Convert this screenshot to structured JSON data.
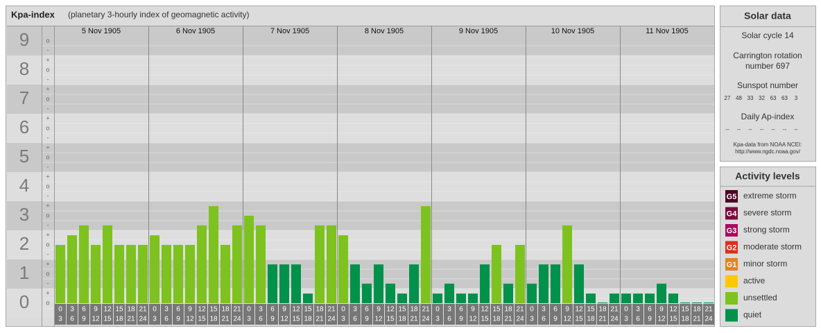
{
  "header": {
    "title": "Kpa-index",
    "subtitle": "(planetary 3-hourly index of geomagnetic activity)"
  },
  "chart_data": {
    "type": "bar",
    "days": [
      {
        "date": "5 Nov 1905",
        "values": [
          2,
          2.33,
          2.67,
          2,
          2.67,
          2,
          2,
          2
        ],
        "colors": [
          "#7dc21e",
          "#7dc21e",
          "#7dc21e",
          "#7dc21e",
          "#7dc21e",
          "#7dc21e",
          "#7dc21e",
          "#7dc21e"
        ]
      },
      {
        "date": "6 Nov 1905",
        "values": [
          2.33,
          2,
          2,
          2,
          2.67,
          3.33,
          2,
          2.67
        ],
        "colors": [
          "#7dc21e",
          "#7dc21e",
          "#7dc21e",
          "#7dc21e",
          "#7dc21e",
          "#7dc21e",
          "#7dc21e",
          "#7dc21e"
        ]
      },
      {
        "date": "7 Nov 1905",
        "values": [
          3,
          2.67,
          1.33,
          1.33,
          1.33,
          0.33,
          2.67,
          2.67
        ],
        "colors": [
          "#7dc21e",
          "#7dc21e",
          "#00914a",
          "#00914a",
          "#00914a",
          "#00914a",
          "#7dc21e",
          "#7dc21e"
        ]
      },
      {
        "date": "8 Nov 1905",
        "values": [
          2.33,
          1.33,
          0.67,
          1.33,
          0.67,
          0.33,
          1.33,
          3.33
        ],
        "colors": [
          "#7dc21e",
          "#00914a",
          "#00914a",
          "#00914a",
          "#00914a",
          "#00914a",
          "#00914a",
          "#7dc21e"
        ]
      },
      {
        "date": "9 Nov 1905",
        "values": [
          0.33,
          0.67,
          0.33,
          0.33,
          1.33,
          2,
          0.67,
          2
        ],
        "colors": [
          "#00914a",
          "#00914a",
          "#00914a",
          "#00914a",
          "#00914a",
          "#7dc21e",
          "#00914a",
          "#7dc21e"
        ]
      },
      {
        "date": "10 Nov 1905",
        "values": [
          0.67,
          1.33,
          1.33,
          2.67,
          1.33,
          0.33,
          0,
          0.33
        ],
        "colors": [
          "#00914a",
          "#00914a",
          "#00914a",
          "#7dc21e",
          "#00914a",
          "#00914a",
          "#00914a",
          "#00914a"
        ]
      },
      {
        "date": "11 Nov 1905",
        "values": [
          0.33,
          0.33,
          0.33,
          0.67,
          0.33,
          0,
          0,
          0
        ],
        "colors": [
          "#00914a",
          "#00914a",
          "#00914a",
          "#00914a",
          "#00914a",
          "#00914a",
          "#00914a",
          "#00914a"
        ]
      }
    ],
    "hours": [
      [
        "0",
        "3"
      ],
      [
        "3",
        "6"
      ],
      [
        "6",
        "9"
      ],
      [
        "9",
        "12"
      ],
      [
        "12",
        "15"
      ],
      [
        "15",
        "18"
      ],
      [
        "18",
        "21"
      ],
      [
        "21",
        "24"
      ]
    ],
    "ylim": [
      0,
      9.5
    ],
    "yticks": [
      0,
      1,
      2,
      3,
      4,
      5,
      6,
      7,
      8,
      9
    ],
    "minor_tick_labels": [
      "+",
      "o",
      "-"
    ]
  },
  "solar_data": {
    "title": "Solar data",
    "cycle": "Solar cycle 14",
    "carrington": [
      "Carrington rotation",
      "number 697"
    ],
    "sunspot_label": "Sunspot number",
    "sunspots": [
      27,
      48,
      33,
      32,
      63,
      63,
      3
    ],
    "ap_label": "Daily Ap-index",
    "ap": [
      "--",
      "--",
      "--",
      "--",
      "--",
      "--",
      "--"
    ],
    "source": [
      "Kpa-data from NOAA NCEI:",
      "http://www.ngdc.noaa.gov/"
    ]
  },
  "activity_levels": {
    "title": "Activity levels",
    "items": [
      {
        "badge": "G5",
        "label": "extreme storm",
        "color": "#4d0026"
      },
      {
        "badge": "G4",
        "label": "severe storm",
        "color": "#7a0a3c"
      },
      {
        "badge": "G3",
        "label": "strong storm",
        "color": "#b0065e"
      },
      {
        "badge": "G2",
        "label": "moderate storm",
        "color": "#d8321c"
      },
      {
        "badge": "G1",
        "label": "minor storm",
        "color": "#e8821c"
      },
      {
        "label": "active",
        "color": "#ffc800"
      },
      {
        "label": "unsettled",
        "color": "#7dc21e"
      },
      {
        "label": "quiet",
        "color": "#00914a"
      }
    ]
  }
}
